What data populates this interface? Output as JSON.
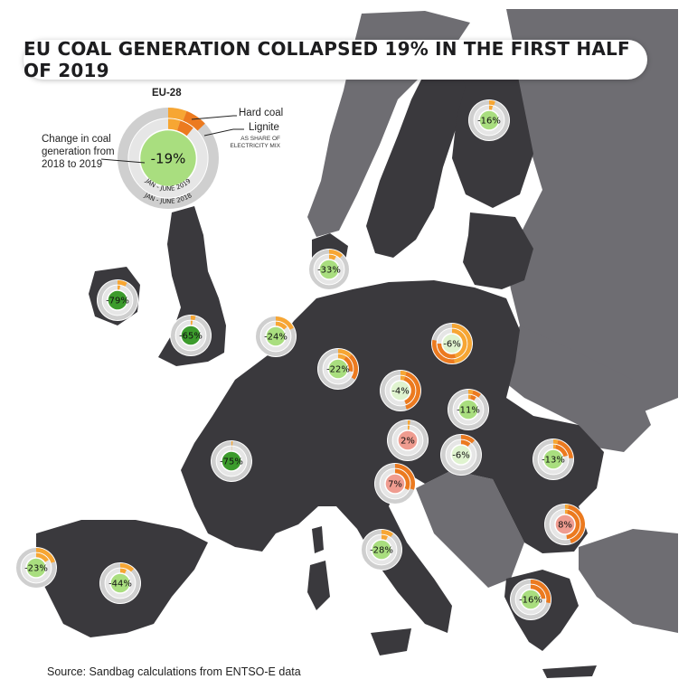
{
  "title": "EU COAL GENERATION COLLAPSED 19% IN THE FIRST HALF OF 2019",
  "legend": {
    "heading": "EU-28",
    "value": "-19%",
    "hard_coal": "Hard coal",
    "lignite": "Lignite",
    "share_note_1": "AS SHARE OF",
    "share_note_2": "ELECTRICITY MIX",
    "change_1": "Change in coal",
    "change_2": "generation from",
    "change_3": "2018 to 2019",
    "inner_ring": "JAN - JUNE 2019",
    "outer_ring": "JAN - JUNE 2018",
    "hard_share_2018": 0.06,
    "lignite_share_2018": 0.07,
    "hard_share_2019": 0.05,
    "lignite_share_2019": 0.06
  },
  "colors": {
    "sea": "#ffffff",
    "land": "#3a393d",
    "non_eu_land": "#6e6d72",
    "hard_coal": "#f7a633",
    "lignite": "#ec7a1f",
    "ring_bg": "#cfcfcf",
    "strong_decrease": "#3c9b2c",
    "moderate_decrease": "#a9de7f",
    "small_decrease": "#dff3cf",
    "increase": "#ef9c90"
  },
  "countries": [
    {
      "name": "Finland",
      "value": "-16%",
      "category": "moderate_decrease",
      "hard18": 0.05,
      "lig18": 0.0,
      "hard19": 0.04,
      "lig19": 0.0
    },
    {
      "name": "Denmark",
      "value": "-33%",
      "category": "moderate_decrease",
      "hard18": 0.12,
      "lig18": 0.0,
      "hard19": 0.08,
      "lig19": 0.0
    },
    {
      "name": "Ireland",
      "value": "-79%",
      "category": "strong_decrease",
      "hard18": 0.08,
      "lig18": 0.0,
      "hard19": 0.03,
      "lig19": 0.0
    },
    {
      "name": "United Kingdom",
      "value": "-65%",
      "category": "strong_decrease",
      "hard18": 0.04,
      "lig18": 0.0,
      "hard19": 0.02,
      "lig19": 0.0
    },
    {
      "name": "Netherlands",
      "value": "-24%",
      "category": "moderate_decrease",
      "hard18": 0.18,
      "lig18": 0.0,
      "hard19": 0.14,
      "lig19": 0.0
    },
    {
      "name": "Germany",
      "value": "-22%",
      "category": "moderate_decrease",
      "hard18": 0.12,
      "lig18": 0.22,
      "hard19": 0.09,
      "lig19": 0.19
    },
    {
      "name": "Poland",
      "value": "-6%",
      "category": "small_decrease",
      "hard18": 0.48,
      "lig18": 0.3,
      "hard19": 0.46,
      "lig19": 0.29
    },
    {
      "name": "Czechia",
      "value": "-4%",
      "category": "small_decrease",
      "hard18": 0.05,
      "lig18": 0.4,
      "hard19": 0.05,
      "lig19": 0.39
    },
    {
      "name": "Slovakia",
      "value": "-11%",
      "category": "moderate_decrease",
      "hard18": 0.04,
      "lig18": 0.07,
      "hard19": 0.03,
      "lig19": 0.06
    },
    {
      "name": "Austria",
      "value": "2%",
      "category": "increase",
      "hard18": 0.02,
      "lig18": 0.0,
      "hard19": 0.02,
      "lig19": 0.0
    },
    {
      "name": "Hungary",
      "value": "-6%",
      "category": "small_decrease",
      "hard18": 0.0,
      "lig18": 0.12,
      "hard19": 0.0,
      "lig19": 0.11
    },
    {
      "name": "Slovenia",
      "value": "7%",
      "category": "increase",
      "hard18": 0.0,
      "lig18": 0.3,
      "hard19": 0.0,
      "lig19": 0.32
    },
    {
      "name": "France",
      "value": "-75%",
      "category": "strong_decrease",
      "hard18": 0.01,
      "lig18": 0.0,
      "hard19": 0.003,
      "lig19": 0.0
    },
    {
      "name": "Romania",
      "value": "-13%",
      "category": "moderate_decrease",
      "hard18": 0.04,
      "lig18": 0.2,
      "hard19": 0.03,
      "lig19": 0.18
    },
    {
      "name": "Bulgaria",
      "value": "8%",
      "category": "increase",
      "hard18": 0.03,
      "lig18": 0.42,
      "hard19": 0.03,
      "lig19": 0.45
    },
    {
      "name": "Italy",
      "value": "-28%",
      "category": "moderate_decrease",
      "hard18": 0.1,
      "lig18": 0.0,
      "hard19": 0.07,
      "lig19": 0.0
    },
    {
      "name": "Portugal",
      "value": "-23%",
      "category": "moderate_decrease",
      "hard18": 0.2,
      "lig18": 0.0,
      "hard19": 0.16,
      "lig19": 0.0
    },
    {
      "name": "Spain",
      "value": "-44%",
      "category": "moderate_decrease",
      "hard18": 0.12,
      "lig18": 0.0,
      "hard19": 0.07,
      "lig19": 0.0
    },
    {
      "name": "Greece",
      "value": "-16%",
      "category": "moderate_decrease",
      "hard18": 0.0,
      "lig18": 0.28,
      "hard19": 0.0,
      "lig19": 0.24
    }
  ],
  "source": "Source: Sandbag calculations from ENTSO-E data"
}
